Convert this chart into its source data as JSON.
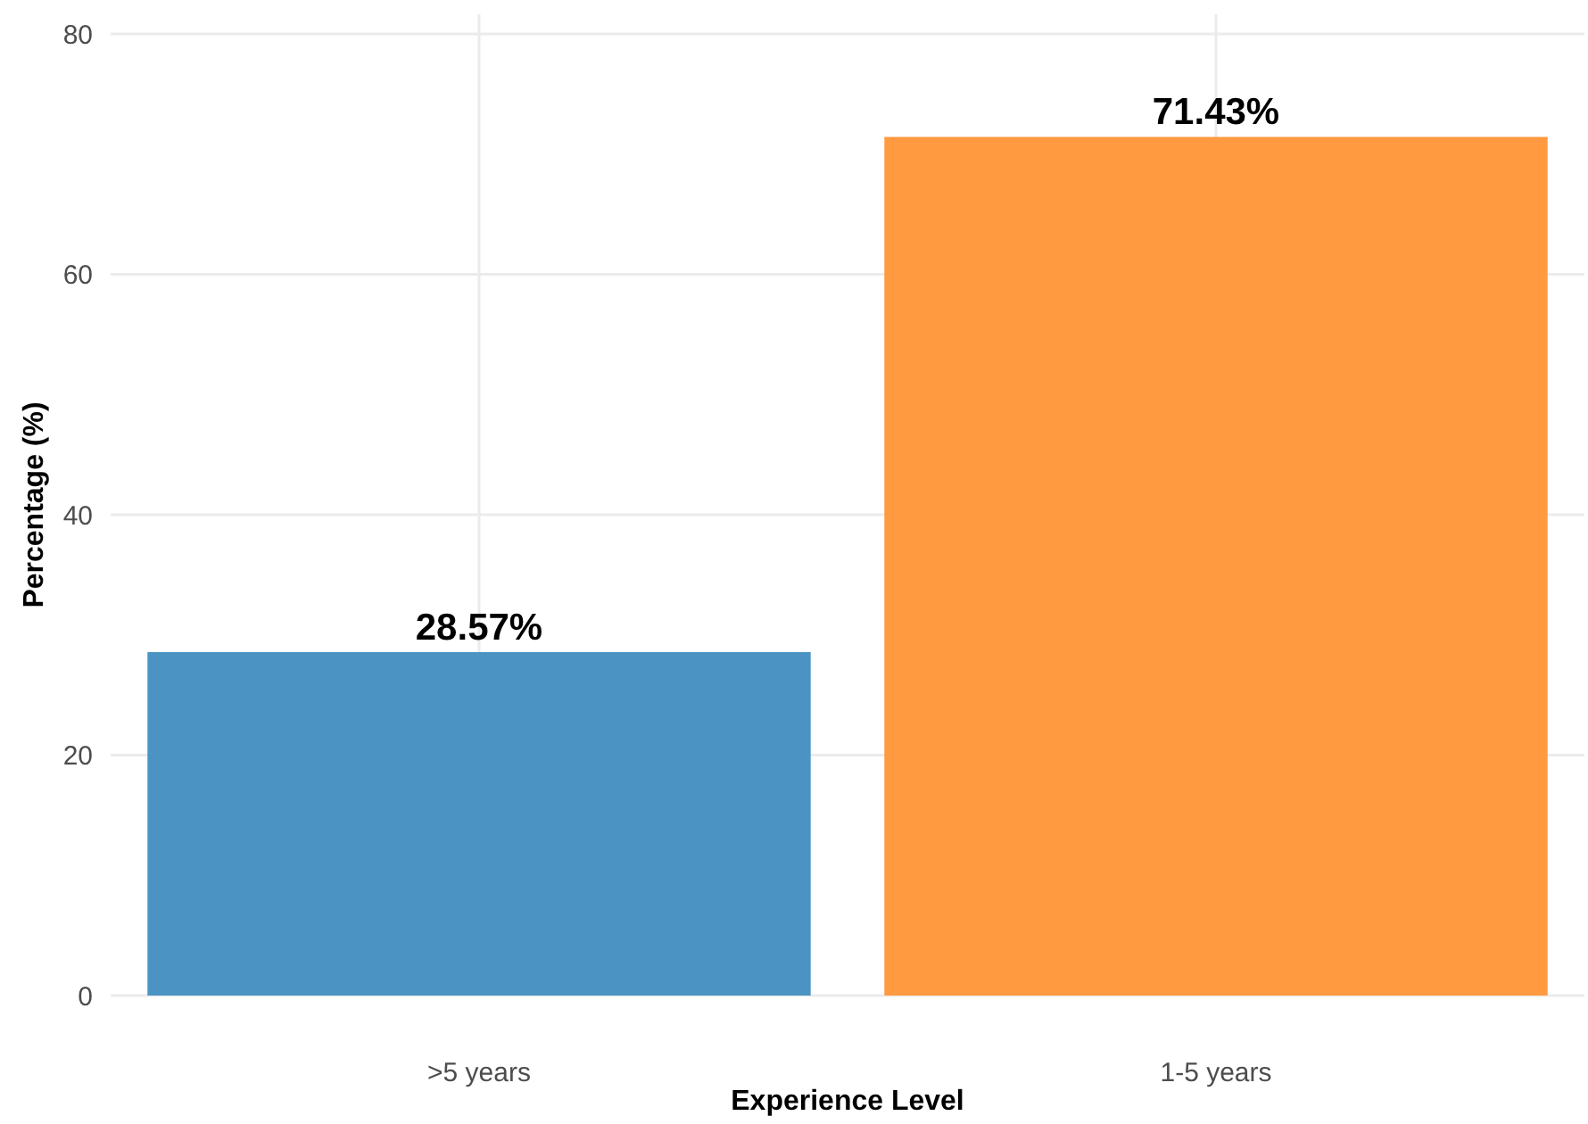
{
  "chart_data": {
    "type": "bar",
    "xlabel": "Experience Level",
    "ylabel": "Percentage (%)",
    "categories": [
      ">5 years",
      "1-5 years"
    ],
    "values": [
      28.57,
      71.43
    ],
    "colors": [
      "#4b93c3",
      "#ff9a40"
    ],
    "value_labels": [
      "28.57%",
      "71.43%"
    ],
    "ylim": [
      0,
      80
    ],
    "yticks": [
      0,
      20,
      40,
      60,
      80
    ],
    "grid": true
  }
}
